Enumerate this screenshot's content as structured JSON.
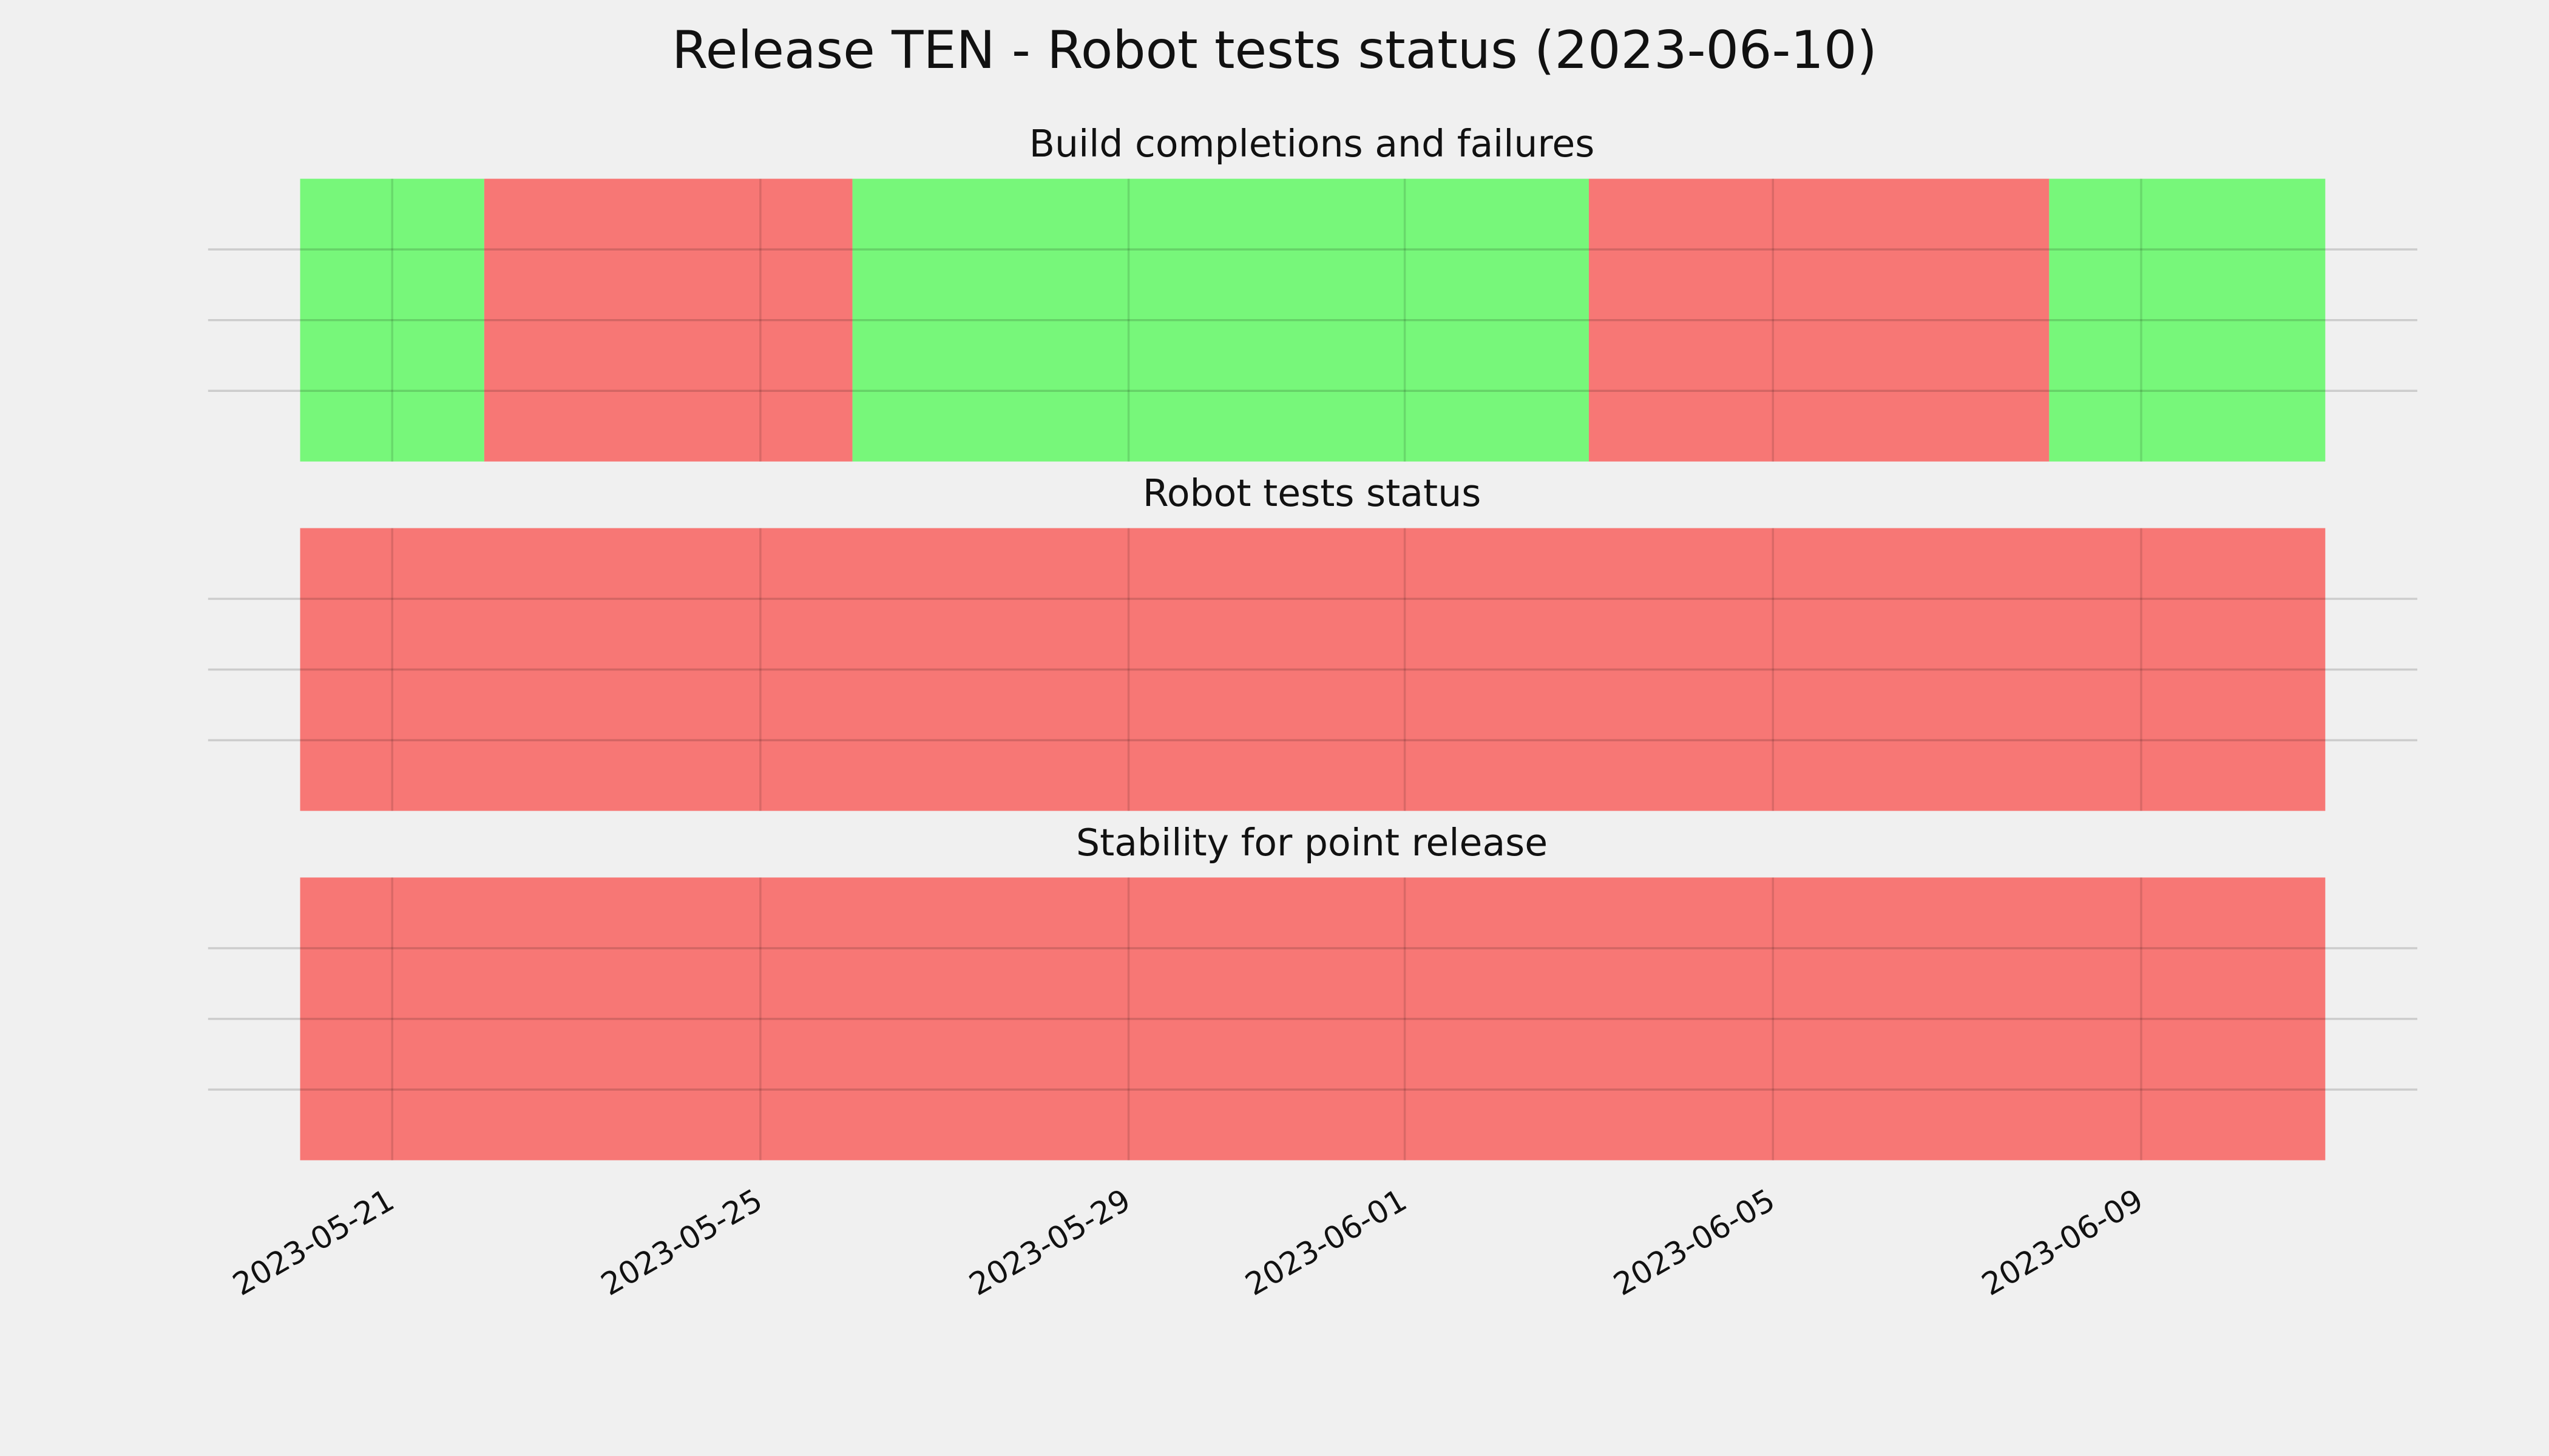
{
  "chart_data": {
    "type": "timeline",
    "title": "Release TEN - Robot tests status (2023-06-10)",
    "xlim": [
      "2023-05-19",
      "2023-06-12"
    ],
    "xticks": [
      "2023-05-21",
      "2023-05-25",
      "2023-05-29",
      "2023-06-01",
      "2023-06-05",
      "2023-06-09"
    ],
    "grid": true,
    "status_colors": {
      "pass": "#77f77a",
      "fail": "#f77775"
    },
    "panels": [
      {
        "title": "Build completions and failures",
        "segments": [
          {
            "start": "2023-05-20",
            "end": "2023-05-22",
            "status": "pass"
          },
          {
            "start": "2023-05-22",
            "end": "2023-05-26",
            "status": "fail"
          },
          {
            "start": "2023-05-26",
            "end": "2023-06-03",
            "status": "pass"
          },
          {
            "start": "2023-06-03",
            "end": "2023-06-08",
            "status": "fail"
          },
          {
            "start": "2023-06-08",
            "end": "2023-06-11",
            "status": "pass"
          }
        ]
      },
      {
        "title": "Robot tests status",
        "segments": [
          {
            "start": "2023-05-20",
            "end": "2023-06-11",
            "status": "fail"
          }
        ]
      },
      {
        "title": "Stability for point release",
        "segments": [
          {
            "start": "2023-05-20",
            "end": "2023-06-11",
            "status": "fail"
          }
        ]
      }
    ]
  }
}
